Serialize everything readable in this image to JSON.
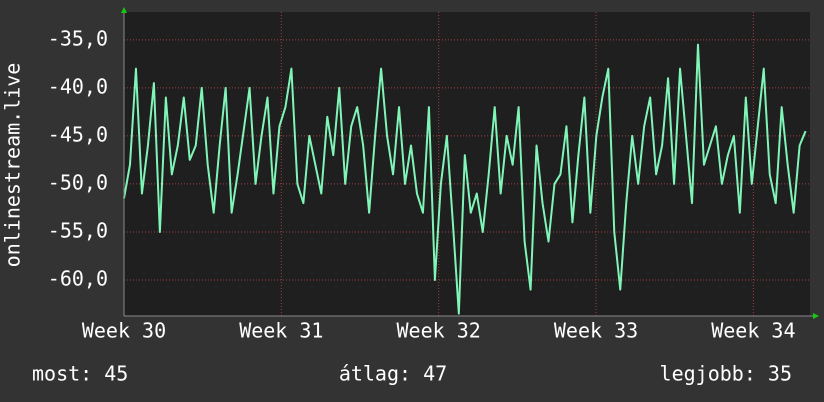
{
  "chart_data": {
    "type": "line",
    "y_label": "onlinestream.live",
    "x": [
      30.0,
      30.038,
      30.076,
      30.114,
      30.152,
      30.19,
      30.228,
      30.266,
      30.304,
      30.342,
      30.38,
      30.418,
      30.456,
      30.494,
      30.532,
      30.57,
      30.608,
      30.646,
      30.684,
      30.722,
      30.76,
      30.798,
      30.836,
      30.874,
      30.912,
      30.95,
      30.988,
      31.026,
      31.064,
      31.102,
      31.14,
      31.178,
      31.216,
      31.254,
      31.292,
      31.33,
      31.368,
      31.406,
      31.444,
      31.482,
      31.52,
      31.558,
      31.596,
      31.634,
      31.672,
      31.71,
      31.748,
      31.786,
      31.824,
      31.862,
      31.9,
      31.938,
      31.976,
      32.014,
      32.052,
      32.09,
      32.128,
      32.166,
      32.204,
      32.242,
      32.28,
      32.318,
      32.356,
      32.394,
      32.432,
      32.47,
      32.508,
      32.546,
      32.584,
      32.622,
      32.66,
      32.698,
      32.736,
      32.774,
      32.812,
      32.85,
      32.888,
      32.926,
      32.964,
      33.002,
      33.04,
      33.078,
      33.116,
      33.154,
      33.192,
      33.23,
      33.268,
      33.306,
      33.344,
      33.382,
      33.42,
      33.458,
      33.496,
      33.534,
      33.572,
      33.61,
      33.648,
      33.686,
      33.724,
      33.762,
      33.8,
      33.838,
      33.876,
      33.914,
      33.952,
      33.99,
      34.028,
      34.066,
      34.104,
      34.142,
      34.18,
      34.218,
      34.256,
      34.294,
      34.332
    ],
    "series": [
      {
        "color": "#80f5b8",
        "values": [
          -51.5,
          -48,
          -38,
          -51,
          -46,
          -39.5,
          -55,
          -41,
          -49,
          -46,
          -41,
          -47.5,
          -46,
          -40,
          -48,
          -53,
          -46,
          -40,
          -53,
          -49,
          -44.5,
          -40,
          -50,
          -45,
          -41,
          -51,
          -44,
          -42,
          -38,
          -50,
          -52,
          -45,
          -48,
          -51,
          -43,
          -47,
          -40,
          -50,
          -44,
          -42,
          -46,
          -53,
          -45,
          -38,
          -45,
          -49,
          -42,
          -50,
          -46,
          -51,
          -53,
          -42,
          -60,
          -50,
          -45,
          -54,
          -63.5,
          -47,
          -53,
          -51,
          -55,
          -49,
          -42,
          -51,
          -45,
          -48,
          -42,
          -56,
          -61,
          -46,
          -52,
          -56,
          -50,
          -49,
          -44,
          -54,
          -47,
          -41,
          -53,
          -45,
          -41,
          -38,
          -55,
          -61,
          -52,
          -45,
          -50,
          -44,
          -41,
          -49,
          -46,
          -39,
          -50,
          -38,
          -45,
          -52,
          -35.5,
          -48,
          -46,
          -44,
          -50,
          -47,
          -45,
          -53,
          -41,
          -50,
          -44,
          -38,
          -49,
          -52,
          -42,
          -48,
          -53,
          -46,
          -44.5
        ]
      }
    ],
    "xlim": [
      30,
      34.36
    ],
    "ylim": [
      -63.75,
      -32.1
    ],
    "xticks": [
      {
        "value": 30,
        "label": "Week 30"
      },
      {
        "value": 31,
        "label": "Week 31"
      },
      {
        "value": 32,
        "label": "Week 32"
      },
      {
        "value": 33,
        "label": "Week 33"
      },
      {
        "value": 34,
        "label": "Week 34"
      }
    ],
    "yticks": [
      {
        "value": -60,
        "label": "-60,0"
      },
      {
        "value": -55,
        "label": "-55,0"
      },
      {
        "value": -50,
        "label": "-50,0"
      },
      {
        "value": -45,
        "label": "-45,0"
      },
      {
        "value": -40,
        "label": "-40,0"
      },
      {
        "value": -35,
        "label": "-35,0"
      }
    ],
    "grid": true,
    "footer": [
      "most: 45",
      "átlag: 47",
      "legjobb: 35"
    ]
  }
}
